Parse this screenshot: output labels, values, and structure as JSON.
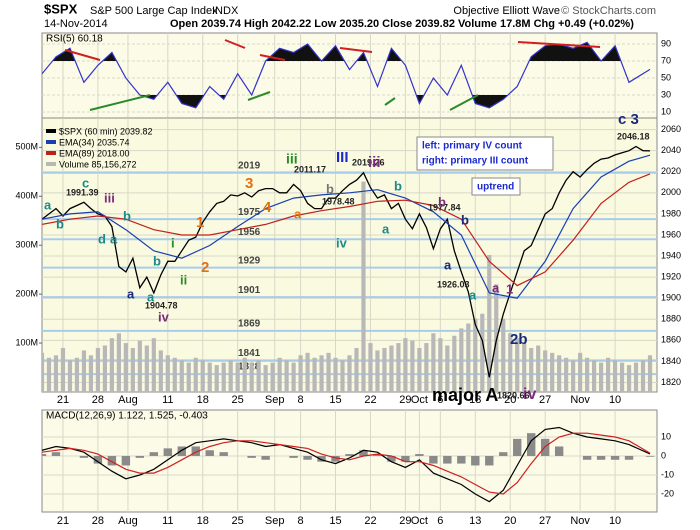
{
  "header": {
    "symbol": "$SPX",
    "name": "S&P 500 Large Cap Index",
    "exchange": "INDX",
    "date": "14-Nov-2014",
    "quote": "Open 2039.74  High 2042.22  Low 2035.20  Close 2039.82  Volume 17.8M  Chg +0.49 (+0.02%)",
    "source": "Objective Elliott Wave",
    "copyright": "© StockCharts.com",
    "notes": [
      "left: primary IV count",
      "right: primary III count"
    ],
    "trend": "uptrend"
  },
  "xlim": [
    0,
    88
  ],
  "xticks": [
    {
      "value": 3,
      "label": "21"
    },
    {
      "value": 8,
      "label": "28"
    },
    {
      "value": 12.3,
      "label": "Aug"
    },
    {
      "value": 18,
      "label": "11"
    },
    {
      "value": 23,
      "label": "18"
    },
    {
      "value": 28,
      "label": "25"
    },
    {
      "value": 33.3,
      "label": "Sep"
    },
    {
      "value": 37,
      "label": "8"
    },
    {
      "value": 42,
      "label": "15"
    },
    {
      "value": 47,
      "label": "22"
    },
    {
      "value": 52,
      "label": "29"
    },
    {
      "value": 54,
      "label": "Oct"
    },
    {
      "value": 57,
      "label": "6"
    },
    {
      "value": 62,
      "label": "13"
    },
    {
      "value": 67,
      "label": "20"
    },
    {
      "value": 72,
      "label": "27"
    },
    {
      "value": 77,
      "label": "Nov"
    },
    {
      "value": 82,
      "label": "10"
    }
  ],
  "chart_data": [
    {
      "type": "line",
      "title": "RSI(5) 60.18",
      "ylim": [
        3,
        103
      ],
      "yticks": [
        10,
        30,
        50,
        70,
        90
      ],
      "grid": true,
      "series": [
        {
          "name": "RSI(5)",
          "color": "#3333cc",
          "x": [
            0,
            2,
            4,
            6,
            8,
            10,
            12,
            14,
            16,
            18,
            20,
            22,
            24,
            26,
            28,
            30,
            32,
            34,
            36,
            38,
            40,
            42,
            44,
            46,
            48,
            50,
            52,
            54,
            56,
            58,
            60,
            62,
            64,
            66,
            68,
            70,
            72,
            74,
            76,
            78,
            80,
            82,
            84,
            87
          ],
          "values": [
            55,
            75,
            85,
            45,
            65,
            80,
            50,
            30,
            25,
            45,
            20,
            15,
            40,
            25,
            55,
            30,
            70,
            85,
            80,
            90,
            70,
            88,
            60,
            80,
            40,
            85,
            65,
            20,
            50,
            30,
            65,
            20,
            15,
            25,
            40,
            75,
            88,
            90,
            85,
            92,
            70,
            88,
            45,
            60.18
          ]
        }
      ]
    },
    {
      "type": "line",
      "ylim": [
        1811,
        2071
      ],
      "yticks": [
        1820,
        1840,
        1860,
        1880,
        1900,
        1920,
        1940,
        1960,
        1980,
        2000,
        2020,
        2040,
        2060
      ],
      "grid": true,
      "y2lim": [
        0,
        560
      ],
      "y2ticks": [
        {
          "value": 100,
          "label": "100M"
        },
        {
          "value": 200,
          "label": "200M"
        },
        {
          "value": 300,
          "label": "300M"
        },
        {
          "value": 400,
          "label": "400M"
        },
        {
          "value": 500,
          "label": "500M"
        }
      ],
      "levels": [
        2019,
        1975,
        1956,
        1929,
        1901,
        1869,
        1841,
        1828
      ],
      "level_color": "#a8cdec",
      "x": [
        0,
        1,
        2,
        3,
        4,
        5,
        6,
        7,
        8,
        9,
        10,
        11,
        12,
        13,
        14,
        15,
        16,
        17,
        18,
        19,
        20,
        21,
        22,
        23,
        24,
        25,
        26,
        27,
        28,
        29,
        30,
        31,
        32,
        33,
        34,
        35,
        36,
        37,
        38,
        39,
        40,
        41,
        42,
        43,
        44,
        45,
        46,
        47,
        48,
        49,
        50,
        51,
        52,
        53,
        54,
        55,
        56,
        57,
        58,
        59,
        60,
        61,
        62,
        63,
        64,
        65,
        66,
        67,
        68,
        69,
        70,
        71,
        72,
        73,
        74,
        75,
        76,
        77,
        78,
        79,
        80,
        81,
        82,
        83,
        84,
        85,
        86,
        87
      ],
      "series": [
        {
          "name": "$SPX (60 min) 2039.82",
          "color": "#000000",
          "kind": "line",
          "values": [
            1975,
            1980,
            1985,
            1978,
            1985,
            1988,
            1991,
            1985,
            1980,
            1978,
            1968,
            1930,
            1925,
            1938,
            1910,
            1920,
            1905,
            1922,
            1935,
            1935,
            1945,
            1955,
            1958,
            1972,
            1982,
            1990,
            1992,
            1998,
            1997,
            2000,
            1996,
            2002,
            2004,
            2004,
            2000,
            2000,
            2008,
            2002,
            1990,
            1985,
            1985,
            1995,
            1995,
            2002,
            2008,
            2012,
            2019,
            2005,
            1995,
            1998,
            1985,
            1990,
            1975,
            1966,
            1980,
            1967,
            1947,
            1966,
            1975,
            1945,
            1925,
            1906,
            1875,
            1860,
            1825,
            1860,
            1885,
            1905,
            1925,
            1945,
            1950,
            1965,
            1980,
            1985,
            2000,
            2012,
            2020,
            2015,
            2022,
            2028,
            2032,
            2033,
            2036,
            2038,
            2040,
            2044,
            2040,
            2039.82
          ]
        },
        {
          "name": "EMA(34) 2035.74",
          "color": "#1a3fb0",
          "kind": "line",
          "x": [
            0,
            4,
            8,
            12,
            16,
            20,
            24,
            28,
            32,
            36,
            40,
            44,
            48,
            52,
            56,
            60,
            64,
            68,
            72,
            76,
            80,
            84,
            87
          ],
          "values": [
            1975,
            1980,
            1982,
            1965,
            1945,
            1938,
            1950,
            1968,
            1985,
            1995,
            1998,
            2000,
            2003,
            1995,
            1982,
            1960,
            1905,
            1900,
            1935,
            1985,
            2015,
            2030,
            2035.74
          ]
        },
        {
          "name": "EMA(89) 2018.00",
          "color": "#c0201a",
          "kind": "line",
          "x": [
            0,
            4,
            8,
            12,
            16,
            20,
            24,
            28,
            32,
            36,
            40,
            44,
            48,
            52,
            56,
            60,
            64,
            68,
            72,
            76,
            80,
            84,
            87
          ],
          "values": [
            1970,
            1975,
            1978,
            1975,
            1965,
            1960,
            1960,
            1965,
            1970,
            1978,
            1983,
            1987,
            1992,
            1993,
            1988,
            1975,
            1935,
            1912,
            1925,
            1955,
            1990,
            2010,
            2018
          ]
        },
        {
          "name": "Volume 85,156,272",
          "color": "#b8b8b8",
          "kind": "bar",
          "axis": "y2",
          "values": [
            80,
            70,
            75,
            90,
            65,
            70,
            85,
            75,
            90,
            95,
            110,
            120,
            100,
            90,
            105,
            95,
            110,
            85,
            75,
            70,
            65,
            60,
            70,
            65,
            60,
            55,
            60,
            65,
            60,
            70,
            60,
            65,
            55,
            60,
            70,
            65,
            60,
            75,
            80,
            70,
            75,
            80,
            70,
            65,
            75,
            90,
            430,
            100,
            85,
            90,
            95,
            100,
            110,
            105,
            90,
            100,
            120,
            110,
            95,
            115,
            130,
            140,
            150,
            160,
            280,
            220,
            150,
            120,
            110,
            100,
            90,
            95,
            85,
            80,
            75,
            70,
            65,
            80,
            70,
            65,
            60,
            70,
            65,
            60,
            55,
            60,
            65,
            75
          ]
        }
      ],
      "annotations": [
        {
          "text": "a",
          "color": "#1a8a8a"
        },
        {
          "text": "b",
          "color": "#1a8a8a"
        },
        {
          "text": "c",
          "color": "#1a8a8a"
        },
        {
          "text": "1991.39",
          "color": "#222222"
        },
        {
          "text": "iii",
          "color": "#7a2a7a"
        },
        {
          "text": "b",
          "color": "#1a8a8a"
        },
        {
          "text": "d",
          "color": "#1a8a8a"
        },
        {
          "text": "a",
          "color": "#1a8a8a"
        },
        {
          "text": "a",
          "color": "#1a2a7a"
        },
        {
          "text": "a",
          "color": "#1a8a8a"
        },
        {
          "text": "b",
          "color": "#1a8a8a"
        },
        {
          "text": "i",
          "color": "#2a8a2a"
        },
        {
          "text": "ii",
          "color": "#2a8a2a"
        },
        {
          "text": "iv",
          "color": "#7a2a7a"
        },
        {
          "text": "1904.78",
          "color": "#222222"
        },
        {
          "text": "1",
          "color": "#e07010"
        },
        {
          "text": "2",
          "color": "#e07010"
        },
        {
          "text": "3",
          "color": "#e07010"
        },
        {
          "text": "4",
          "color": "#e07010"
        },
        {
          "text": "iii",
          "color": "#2a8a2a"
        },
        {
          "text": "2011.17",
          "color": "#222222"
        },
        {
          "text": "a",
          "color": "#e07010"
        },
        {
          "text": "b",
          "color": "#777777"
        },
        {
          "text": "1978.48",
          "color": "#222222"
        },
        {
          "text": "iv",
          "color": "#1a8a8a"
        },
        {
          "text": "III",
          "color": "#1a2ad0"
        },
        {
          "text": "2019.26",
          "color": "#222222"
        },
        {
          "text": "iii",
          "color": "#7a2a7a"
        },
        {
          "text": "b",
          "color": "#1a8a8a"
        },
        {
          "text": "a",
          "color": "#1a8a8a"
        },
        {
          "text": "1977.84",
          "color": "#222222"
        },
        {
          "text": "b",
          "color": "#7a2a7a"
        },
        {
          "text": "b",
          "color": "#1a2a7a"
        },
        {
          "text": "a",
          "color": "#1a2a7a"
        },
        {
          "text": "1926.03",
          "color": "#222222"
        },
        {
          "text": "a",
          "color": "#1a8a8a"
        },
        {
          "text": "a",
          "color": "#7a2a7a"
        },
        {
          "text": "1",
          "color": "#7a2a7a"
        },
        {
          "text": "2b",
          "color": "#1a2a7a"
        },
        {
          "text": "iv",
          "color": "#7a2a7a"
        },
        {
          "text": "1820.66",
          "color": "#222222"
        },
        {
          "text": "major A",
          "color": "#000000"
        },
        {
          "text": "c 3",
          "color": "#1a2a7a"
        },
        {
          "text": "2046.18",
          "color": "#222222"
        }
      ]
    },
    {
      "type": "line",
      "title": "MACD(12,26,9) 1.122, 1.525, -0.403",
      "ylim": [
        -29.5,
        24.2
      ],
      "yticks": [
        10,
        0,
        -10,
        -20
      ],
      "grid": true,
      "x": [
        0,
        2,
        4,
        6,
        8,
        10,
        12,
        14,
        16,
        18,
        20,
        22,
        24,
        26,
        28,
        30,
        32,
        34,
        36,
        38,
        40,
        42,
        44,
        46,
        48,
        50,
        52,
        54,
        56,
        58,
        60,
        62,
        64,
        66,
        68,
        70,
        72,
        74,
        76,
        78,
        80,
        82,
        84,
        87
      ],
      "series": [
        {
          "name": "MACD",
          "color": "#000000",
          "kind": "line",
          "values": [
            3,
            5,
            4,
            2,
            -3,
            -8,
            -12,
            -10,
            -7,
            -2,
            3,
            7,
            8,
            9,
            8,
            7,
            5,
            6,
            4,
            2,
            -2,
            -4,
            -1,
            3,
            2,
            -3,
            -6,
            -2,
            -9,
            -12,
            -15,
            -20,
            -24,
            -18,
            -5,
            8,
            14,
            15,
            12,
            10,
            9,
            8,
            6,
            1.1
          ]
        },
        {
          "name": "Signal",
          "color": "#d02020",
          "kind": "line",
          "values": [
            2,
            3,
            4,
            3,
            1,
            -3,
            -7,
            -9,
            -9,
            -6,
            -2,
            2,
            5,
            7,
            8,
            8,
            7,
            6,
            5,
            4,
            1,
            -1,
            -2,
            0,
            1,
            0,
            -3,
            -3,
            -5,
            -8,
            -11,
            -15,
            -19,
            -20,
            -14,
            -4,
            5,
            10,
            12,
            12,
            11,
            10,
            8,
            1.5
          ]
        },
        {
          "name": "Histogram",
          "color": "#8a8a8a",
          "kind": "bar",
          "values": [
            1,
            2,
            0,
            -1,
            -4,
            -5,
            -5,
            -1,
            2,
            4,
            5,
            5,
            3,
            2,
            0,
            -1,
            -2,
            0,
            -1,
            -2,
            -3,
            -3,
            1,
            3,
            1,
            -3,
            -3,
            1,
            -4,
            -4,
            -4,
            -5,
            -5,
            2,
            9,
            12,
            9,
            5,
            0,
            -2,
            -2,
            -2,
            -2,
            -0.4
          ]
        }
      ]
    }
  ]
}
